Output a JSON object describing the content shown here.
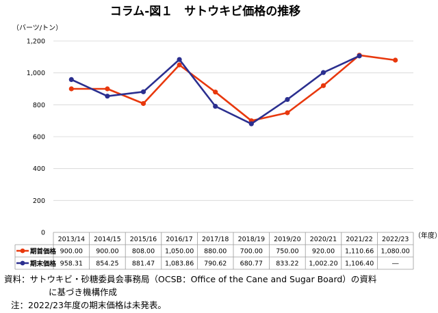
{
  "chart_data": {
    "type": "line",
    "title": "コラム-図１　サトウキビ価格の推移",
    "ylabel": "（バーツ/トン）",
    "xlabel": "（年度）",
    "ylim": [
      0,
      1200
    ],
    "yticks": [
      0,
      200,
      400,
      600,
      800,
      1000,
      1200
    ],
    "ytick_labels": [
      "0",
      "200",
      "400",
      "600",
      "800",
      "1,000",
      "1,200"
    ],
    "grid": true,
    "categories": [
      "2013/14",
      "2014/15",
      "2015/16",
      "2016/17",
      "2017/18",
      "2018/19",
      "2019/20",
      "2020/21",
      "2021/22",
      "2022/23"
    ],
    "series": [
      {
        "name": "期首価格",
        "color": "#e8380d",
        "values": [
          900.0,
          900.0,
          808.0,
          1050.0,
          880.0,
          700.0,
          750.0,
          920.0,
          1110.66,
          1080.0
        ],
        "labels": [
          "900.00",
          "900.00",
          "808.00",
          "1,050.00",
          "880.00",
          "700.00",
          "750.00",
          "920.00",
          "1,110.66",
          "1,080.00"
        ]
      },
      {
        "name": "期末価格",
        "color": "#2b2f8f",
        "values": [
          958.31,
          854.25,
          881.47,
          1083.86,
          790.62,
          680.77,
          833.22,
          1002.2,
          1106.4,
          null
        ],
        "labels": [
          "958.31",
          "854.25",
          "881.47",
          "1,083.86",
          "790.62",
          "680.77",
          "833.22",
          "1,002.20",
          "1,106.40",
          "―"
        ]
      }
    ]
  },
  "notes": {
    "source": "資料：サトウキビ・砂糖委員会事務局（OCSB：Office of the Cane and Sugar Board）の資料",
    "source_cont": "に基づき機構作成",
    "note": "注：2022/23年度の期末価格は未発表。"
  }
}
